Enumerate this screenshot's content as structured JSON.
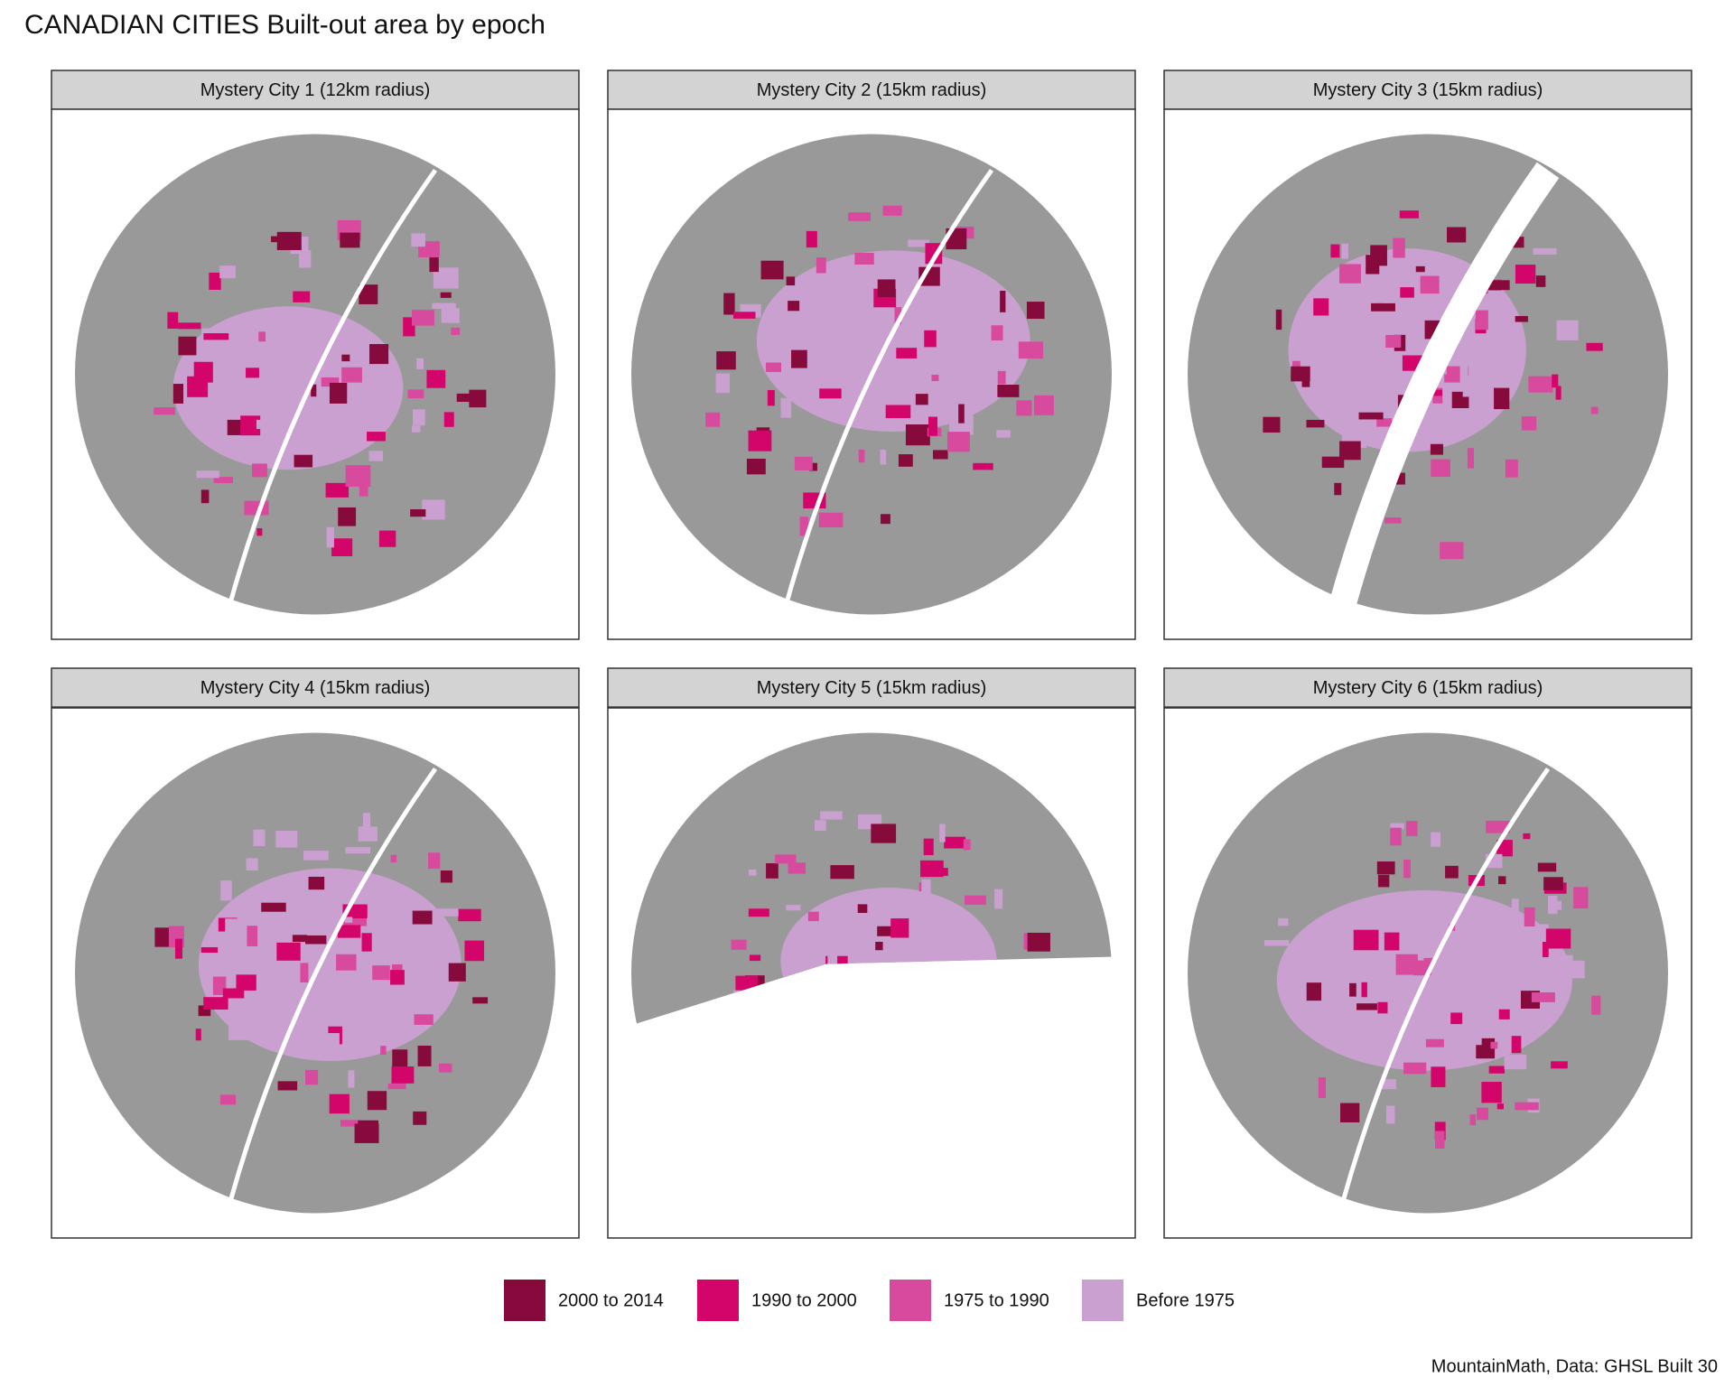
{
  "title": "CANADIAN CITIES Built-out area by epoch",
  "panels": [
    {
      "label": "Mystery City 1 (12km radius)"
    },
    {
      "label": "Mystery City 2 (15km radius)"
    },
    {
      "label": "Mystery City 3 (15km radius)"
    },
    {
      "label": "Mystery City 4 (15km radius)"
    },
    {
      "label": "Mystery City 5 (15km radius)"
    },
    {
      "label": "Mystery City 6 (15km radius)"
    }
  ],
  "legend": [
    {
      "label": "2000 to 2014",
      "color": "#870a3c"
    },
    {
      "label": "1990 to 2000",
      "color": "#d4056a"
    },
    {
      "label": "1975 to 1990",
      "color": "#d84a9e"
    },
    {
      "label": "Before 1975",
      "color": "#c9a0cf"
    }
  ],
  "caption": "MountainMath, Data: GHSL Built 30"
}
